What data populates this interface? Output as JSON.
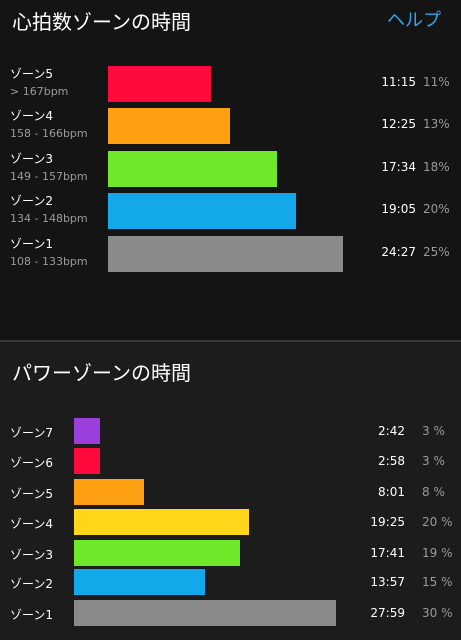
{
  "heart_rate_section": {
    "title": "心拍数ゾーンの時間",
    "help_label": "ヘルプ",
    "zones": [
      {
        "name": "ゾーン5",
        "range": "> 167bpm",
        "time": "11:15",
        "percent": "11%",
        "share": 11,
        "color": "#ff0a3c"
      },
      {
        "name": "ゾーン4",
        "range": "158 - 166bpm",
        "time": "12:25",
        "percent": "13%",
        "share": 13,
        "color": "#ff9f12"
      },
      {
        "name": "ゾーン3",
        "range": "149 - 157bpm",
        "time": "17:34",
        "percent": "18%",
        "share": 18,
        "color": "#6fe82a"
      },
      {
        "name": "ゾーン2",
        "range": "134 - 148bpm",
        "time": "19:05",
        "percent": "20%",
        "share": 20,
        "color": "#12a8ea"
      },
      {
        "name": "ゾーン1",
        "range": "108 - 133bpm",
        "time": "24:27",
        "percent": "25%",
        "share": 25,
        "color": "#8a8a8a"
      }
    ]
  },
  "power_section": {
    "title": "パワーゾーンの時間",
    "zones": [
      {
        "name": "ゾーン7",
        "time": "2:42",
        "percent": "3 %",
        "share": 3,
        "color": "#9b3fdc"
      },
      {
        "name": "ゾーン6",
        "time": "2:58",
        "percent": "3 %",
        "share": 3,
        "color": "#ff0a3c"
      },
      {
        "name": "ゾーン5",
        "time": "8:01",
        "percent": "8 %",
        "share": 8,
        "color": "#ff9f12"
      },
      {
        "name": "ゾーン4",
        "time": "19:25",
        "percent": "20 %",
        "share": 20,
        "color": "#ffd619"
      },
      {
        "name": "ゾーン3",
        "time": "17:41",
        "percent": "19 %",
        "share": 19,
        "color": "#6fe82a"
      },
      {
        "name": "ゾーン2",
        "time": "13:57",
        "percent": "15 %",
        "share": 15,
        "color": "#12a8ea"
      },
      {
        "name": "ゾーン1",
        "time": "27:59",
        "percent": "30 %",
        "share": 30,
        "color": "#8a8a8a"
      }
    ]
  }
}
